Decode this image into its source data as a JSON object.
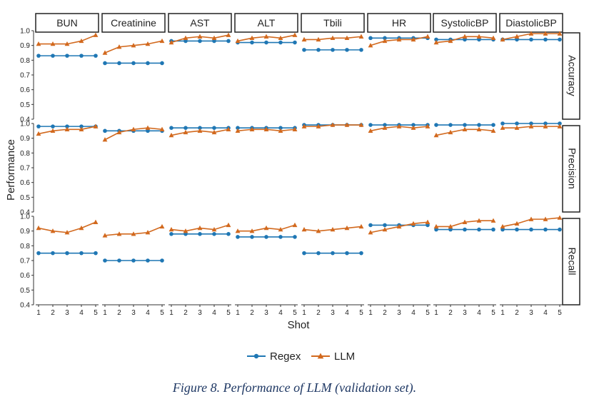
{
  "caption": "Figure 8. Performance of LLM (validation set).",
  "chart_data": {
    "type": "line",
    "facets": {
      "columns": [
        "BUN",
        "Creatinine",
        "AST",
        "ALT",
        "Tbili",
        "HR",
        "SystolicBP",
        "DiastolicBP"
      ],
      "rows": [
        "Accuracy",
        "Precision",
        "Recall"
      ]
    },
    "x": [
      1,
      2,
      3,
      4,
      5
    ],
    "xlabel": "Shot",
    "ylabel": "Performance",
    "ylim": [
      0.4,
      1.0
    ],
    "yticks": [
      "0.4",
      "0.5",
      "0.6",
      "0.7",
      "0.8",
      "0.9",
      "1.0"
    ],
    "xticks": [
      "1",
      "2",
      "3",
      "4",
      "5"
    ],
    "legend": {
      "position": "bottom",
      "entries": [
        "Regex",
        "LLM"
      ]
    },
    "colors": {
      "Regex": "#1f77b4",
      "LLM": "#d2691e"
    },
    "markers": {
      "Regex": "circle",
      "LLM": "triangle"
    },
    "grid": false,
    "panels": {
      "Accuracy": {
        "BUN": {
          "Regex": [
            0.83,
            0.83,
            0.83,
            0.83,
            0.83
          ],
          "LLM": [
            0.91,
            0.91,
            0.91,
            0.93,
            0.97
          ]
        },
        "Creatinine": {
          "Regex": [
            0.78,
            0.78,
            0.78,
            0.78,
            0.78
          ],
          "LLM": [
            0.85,
            0.89,
            0.9,
            0.91,
            0.93
          ]
        },
        "AST": {
          "Regex": [
            0.93,
            0.93,
            0.93,
            0.93,
            0.93
          ],
          "LLM": [
            0.92,
            0.95,
            0.96,
            0.95,
            0.97
          ]
        },
        "ALT": {
          "Regex": [
            0.92,
            0.92,
            0.92,
            0.92,
            0.92
          ],
          "LLM": [
            0.93,
            0.95,
            0.96,
            0.95,
            0.97
          ]
        },
        "Tbili": {
          "Regex": [
            0.87,
            0.87,
            0.87,
            0.87,
            0.87
          ],
          "LLM": [
            0.94,
            0.94,
            0.95,
            0.95,
            0.96
          ]
        },
        "HR": {
          "Regex": [
            0.95,
            0.95,
            0.95,
            0.95,
            0.95
          ],
          "LLM": [
            0.9,
            0.93,
            0.94,
            0.94,
            0.96
          ]
        },
        "SystolicBP": {
          "Regex": [
            0.94,
            0.94,
            0.94,
            0.94,
            0.94
          ],
          "LLM": [
            0.92,
            0.93,
            0.96,
            0.96,
            0.95
          ]
        },
        "DiastolicBP": {
          "Regex": [
            0.94,
            0.94,
            0.94,
            0.94,
            0.94
          ],
          "LLM": [
            0.94,
            0.96,
            0.98,
            0.98,
            0.98
          ]
        }
      },
      "Precision": {
        "BUN": {
          "Regex": [
            0.98,
            0.98,
            0.98,
            0.98,
            0.98
          ],
          "LLM": [
            0.93,
            0.95,
            0.96,
            0.96,
            0.98
          ]
        },
        "Creatinine": {
          "Regex": [
            0.95,
            0.95,
            0.95,
            0.95,
            0.95
          ],
          "LLM": [
            0.89,
            0.94,
            0.96,
            0.97,
            0.96
          ]
        },
        "AST": {
          "Regex": [
            0.97,
            0.97,
            0.97,
            0.97,
            0.97
          ],
          "LLM": [
            0.92,
            0.94,
            0.95,
            0.94,
            0.96
          ]
        },
        "ALT": {
          "Regex": [
            0.97,
            0.97,
            0.97,
            0.97,
            0.97
          ],
          "LLM": [
            0.95,
            0.96,
            0.96,
            0.95,
            0.96
          ]
        },
        "Tbili": {
          "Regex": [
            0.99,
            0.99,
            0.99,
            0.99,
            0.99
          ],
          "LLM": [
            0.98,
            0.98,
            0.99,
            0.99,
            0.99
          ]
        },
        "HR": {
          "Regex": [
            0.99,
            0.99,
            0.99,
            0.99,
            0.99
          ],
          "LLM": [
            0.95,
            0.97,
            0.98,
            0.97,
            0.98
          ]
        },
        "SystolicBP": {
          "Regex": [
            0.99,
            0.99,
            0.99,
            0.99,
            0.99
          ],
          "LLM": [
            0.92,
            0.94,
            0.96,
            0.96,
            0.95
          ]
        },
        "DiastolicBP": {
          "Regex": [
            1.0,
            1.0,
            1.0,
            1.0,
            1.0
          ],
          "LLM": [
            0.97,
            0.97,
            0.98,
            0.98,
            0.98
          ]
        }
      },
      "Recall": {
        "BUN": {
          "Regex": [
            0.75,
            0.75,
            0.75,
            0.75,
            0.75
          ],
          "LLM": [
            0.92,
            0.9,
            0.89,
            0.92,
            0.96
          ]
        },
        "Creatinine": {
          "Regex": [
            0.7,
            0.7,
            0.7,
            0.7,
            0.7
          ],
          "LLM": [
            0.87,
            0.88,
            0.88,
            0.89,
            0.93
          ]
        },
        "AST": {
          "Regex": [
            0.88,
            0.88,
            0.88,
            0.88,
            0.88
          ],
          "LLM": [
            0.91,
            0.9,
            0.92,
            0.91,
            0.94
          ]
        },
        "ALT": {
          "Regex": [
            0.86,
            0.86,
            0.86,
            0.86,
            0.86
          ],
          "LLM": [
            0.9,
            0.9,
            0.92,
            0.91,
            0.94
          ]
        },
        "Tbili": {
          "Regex": [
            0.75,
            0.75,
            0.75,
            0.75,
            0.75
          ],
          "LLM": [
            0.91,
            0.9,
            0.91,
            0.92,
            0.93
          ]
        },
        "HR": {
          "Regex": [
            0.94,
            0.94,
            0.94,
            0.94,
            0.94
          ],
          "LLM": [
            0.89,
            0.91,
            0.93,
            0.95,
            0.96
          ]
        },
        "SystolicBP": {
          "Regex": [
            0.91,
            0.91,
            0.91,
            0.91,
            0.91
          ],
          "LLM": [
            0.93,
            0.93,
            0.96,
            0.97,
            0.97
          ]
        },
        "DiastolicBP": {
          "Regex": [
            0.91,
            0.91,
            0.91,
            0.91,
            0.91
          ],
          "LLM": [
            0.93,
            0.95,
            0.98,
            0.98,
            0.99
          ]
        }
      }
    }
  }
}
